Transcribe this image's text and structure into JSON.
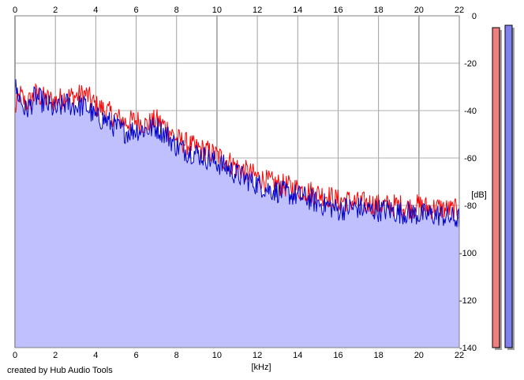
{
  "app": {
    "credit": "created by Hub Audio Tools"
  },
  "chart_data": {
    "type": "line",
    "xlabel": "[kHz]",
    "ylabel": "[dB]",
    "xlim": [
      0,
      22
    ],
    "ylim": [
      -140,
      0
    ],
    "x_ticks": [
      0,
      2,
      4,
      6,
      8,
      10,
      12,
      14,
      16,
      18,
      20,
      22
    ],
    "y_ticks": [
      0,
      -20,
      -40,
      -60,
      -80,
      -100,
      -120,
      -140
    ],
    "grid": true,
    "x": [
      0,
      0.25,
      0.5,
      0.75,
      1,
      1.5,
      2,
      2.5,
      3,
      3.5,
      4,
      4.5,
      5,
      5.5,
      6,
      6.5,
      7,
      7.5,
      8,
      8.5,
      9,
      9.5,
      10,
      10.5,
      11,
      11.5,
      12,
      12.5,
      13,
      13.5,
      14,
      14.5,
      15,
      15.5,
      16,
      16.5,
      17,
      17.5,
      18,
      18.5,
      19,
      19.5,
      20,
      20.5,
      21,
      21.5,
      22
    ],
    "series": [
      {
        "color": "#ff0000",
        "values": [
          -40,
          -33,
          -37,
          -36,
          -33,
          -35,
          -36,
          -34,
          -34,
          -33,
          -38,
          -40,
          -43,
          -45,
          -44,
          -46,
          -44,
          -47,
          -52,
          -54,
          -56,
          -57,
          -59,
          -61,
          -64,
          -66,
          -68,
          -70,
          -71,
          -72,
          -73,
          -74,
          -75,
          -76,
          -78,
          -78,
          -79,
          -79,
          -80,
          -80,
          -80,
          -81,
          -80,
          -81,
          -81,
          -82,
          -82
        ]
      },
      {
        "color": "#0000cc",
        "values": [
          -30,
          -35,
          -40,
          -38,
          -34,
          -37,
          -40,
          -37,
          -38,
          -38,
          -43,
          -44,
          -47,
          -49,
          -48,
          -48,
          -47,
          -50,
          -55,
          -57,
          -58,
          -60,
          -62,
          -64,
          -67,
          -69,
          -71,
          -73,
          -74,
          -75,
          -76,
          -77,
          -79,
          -80,
          -82,
          -81,
          -81,
          -82,
          -82,
          -82,
          -83,
          -83,
          -84,
          -84,
          -84,
          -85,
          -86
        ]
      }
    ],
    "fill_color": "#c0c0ff",
    "level_meters": [
      {
        "color": "#f08080",
        "level_db": -5
      },
      {
        "color": "#8080f0",
        "level_db": -4
      }
    ]
  }
}
